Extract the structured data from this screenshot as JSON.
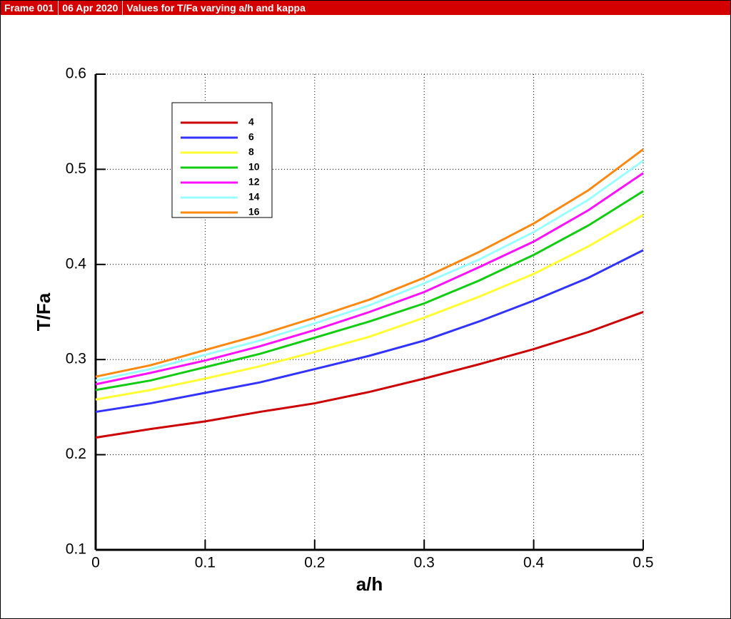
{
  "header": {
    "frame": "Frame 001",
    "date": "06 Apr 2020"
  },
  "chart_data": {
    "type": "line",
    "title": "Values for T/Fa varying a/h and kappa",
    "x_label": "a/h",
    "y_label": "T/Fa",
    "x": [
      0,
      0.05,
      0.1,
      0.15,
      0.2,
      0.25,
      0.3,
      0.35,
      0.4,
      0.45,
      0.5
    ],
    "xlim": [
      0,
      0.5
    ],
    "xticks": [
      0,
      0.1,
      0.2,
      0.3,
      0.4,
      0.5
    ],
    "ylim": [
      0.1,
      0.6
    ],
    "yticks": [
      0.1,
      0.2,
      0.3,
      0.4,
      0.5,
      0.6
    ],
    "grid": true,
    "legend": "upper left",
    "series": [
      {
        "name": "4",
        "color": "#cc0000",
        "values": [
          0.218,
          0.227,
          0.235,
          0.245,
          0.254,
          0.266,
          0.28,
          0.295,
          0.311,
          0.329,
          0.35
        ]
      },
      {
        "name": "6",
        "color": "#3333ff",
        "values": [
          0.245,
          0.254,
          0.265,
          0.276,
          0.29,
          0.304,
          0.32,
          0.34,
          0.362,
          0.386,
          0.415
        ]
      },
      {
        "name": "8",
        "color": "#ffff33",
        "values": [
          0.258,
          0.268,
          0.28,
          0.293,
          0.308,
          0.324,
          0.344,
          0.366,
          0.39,
          0.419,
          0.452
        ]
      },
      {
        "name": "10",
        "color": "#11cc11",
        "values": [
          0.268,
          0.278,
          0.292,
          0.306,
          0.323,
          0.34,
          0.359,
          0.383,
          0.41,
          0.441,
          0.477
        ]
      },
      {
        "name": "12",
        "color": "#ff11ff",
        "values": [
          0.274,
          0.286,
          0.299,
          0.314,
          0.331,
          0.35,
          0.371,
          0.397,
          0.424,
          0.457,
          0.496
        ]
      },
      {
        "name": "14",
        "color": "#99ffff",
        "values": [
          0.278,
          0.29,
          0.305,
          0.32,
          0.338,
          0.357,
          0.38,
          0.405,
          0.434,
          0.468,
          0.509
        ]
      },
      {
        "name": "16",
        "color": "#ff8811",
        "values": [
          0.282,
          0.294,
          0.31,
          0.326,
          0.344,
          0.363,
          0.386,
          0.413,
          0.443,
          0.478,
          0.521
        ]
      }
    ]
  }
}
